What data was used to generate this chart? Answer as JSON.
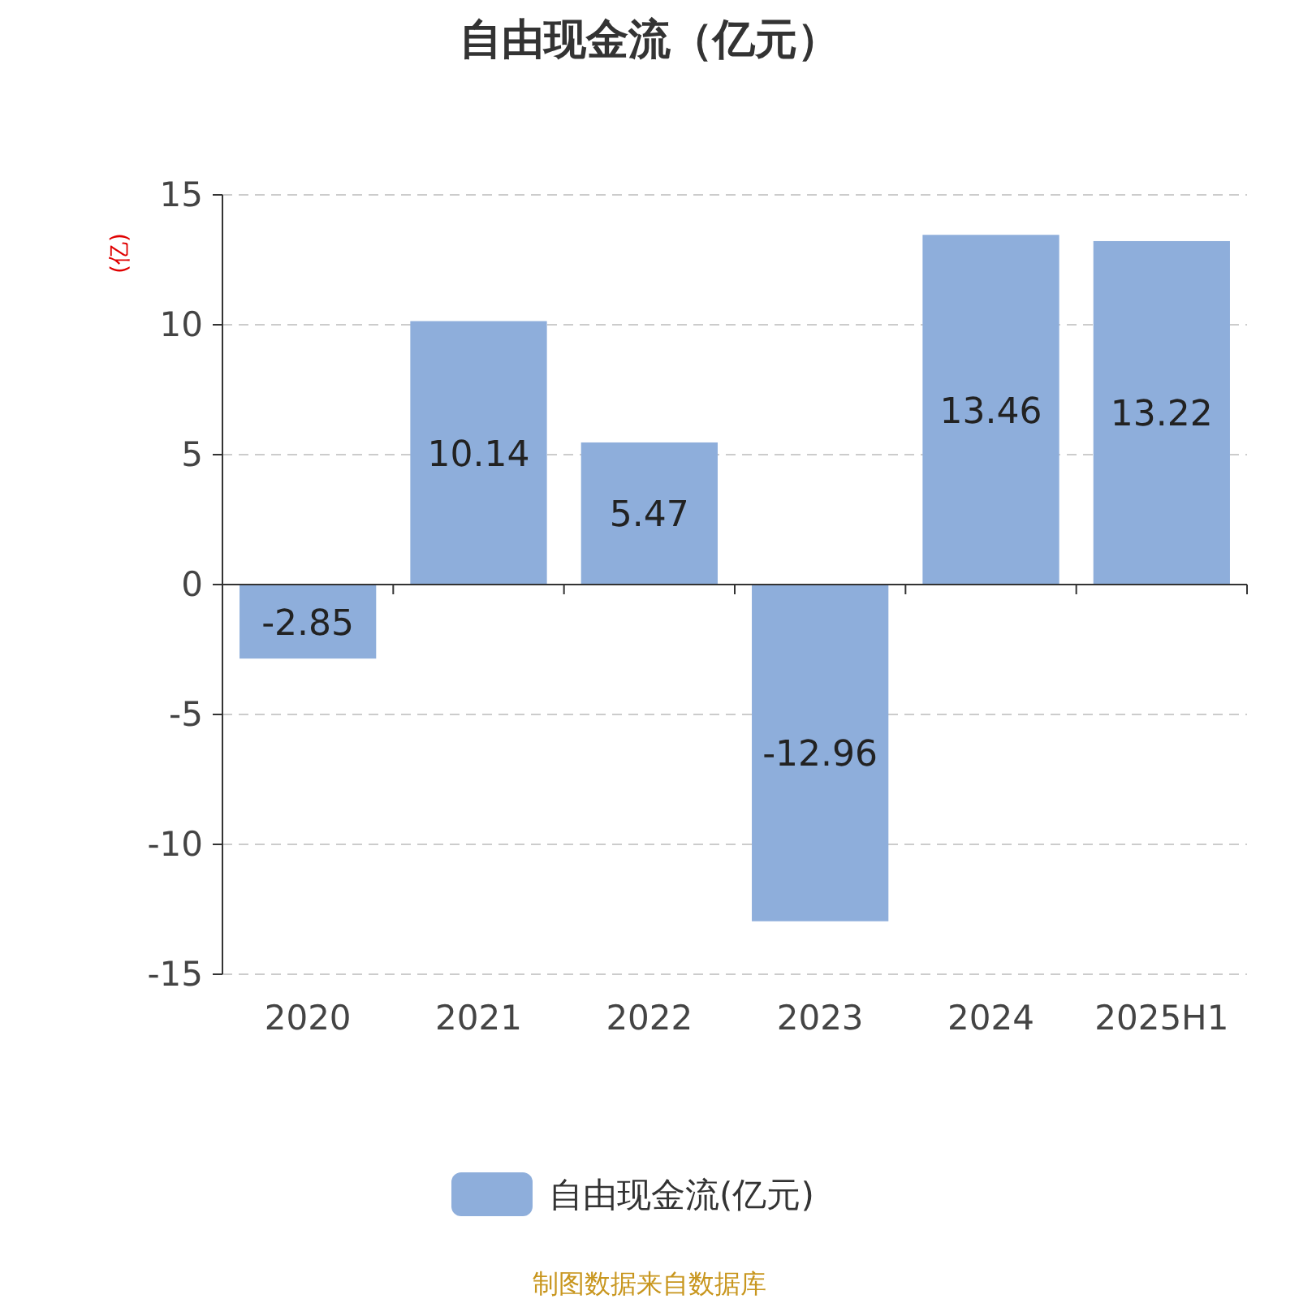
{
  "chart_data": {
    "type": "bar",
    "title": "自由现金流（亿元）",
    "ylabel": "(亿)",
    "categories": [
      "2020",
      "2021",
      "2022",
      "2023",
      "2024",
      "2025H1"
    ],
    "series": [
      {
        "name": "自由现金流(亿元)",
        "color": "#8eaedb",
        "values": [
          -2.85,
          10.14,
          5.47,
          -12.96,
          13.46,
          13.22
        ]
      }
    ],
    "ylim": [
      -15,
      15
    ],
    "yticks": [
      -15,
      -10,
      -5,
      0,
      5,
      10,
      15
    ],
    "grid": "y",
    "legend": "bottom",
    "data_labels": true,
    "annotations": [
      "制图数据来自数据库"
    ]
  }
}
